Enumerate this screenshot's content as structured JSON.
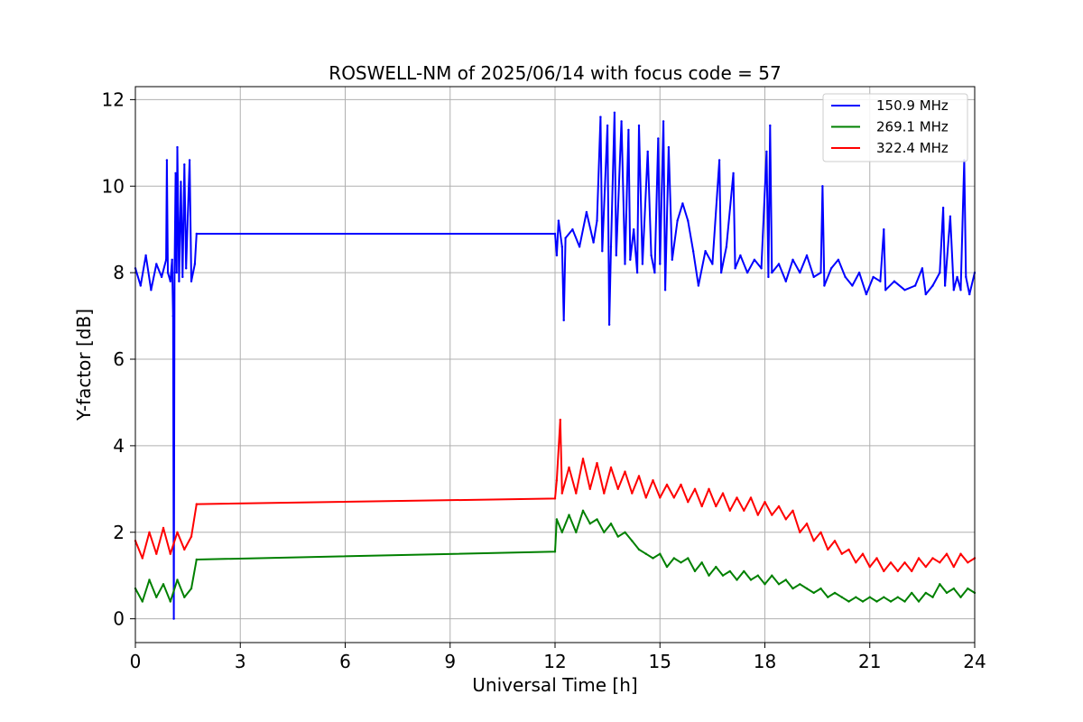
{
  "chart_data": {
    "type": "line",
    "title": "ROSWELL-NM of 2025/06/14 with focus code = 57",
    "xlabel": "Universal Time [h]",
    "ylabel": "Y-factor [dB]",
    "xlim": [
      0,
      24
    ],
    "ylim": [
      -0.55,
      12.3
    ],
    "xticks": [
      0,
      3,
      6,
      9,
      12,
      15,
      18,
      21,
      24
    ],
    "yticks": [
      0,
      2,
      4,
      6,
      8,
      10,
      12
    ],
    "grid": true,
    "legend_position": "top-right",
    "series": [
      {
        "name": "150.9 MHz",
        "color": "#0000ff",
        "points": [
          [
            0.0,
            8.1
          ],
          [
            0.15,
            7.7
          ],
          [
            0.3,
            8.4
          ],
          [
            0.45,
            7.6
          ],
          [
            0.6,
            8.2
          ],
          [
            0.75,
            7.9
          ],
          [
            0.88,
            8.3
          ],
          [
            0.9,
            10.6
          ],
          [
            0.93,
            8.0
          ],
          [
            1.0,
            7.8
          ],
          [
            1.05,
            8.3
          ],
          [
            1.08,
            7.0
          ],
          [
            1.1,
            0.0
          ],
          [
            1.12,
            8.0
          ],
          [
            1.15,
            10.3
          ],
          [
            1.18,
            8.0
          ],
          [
            1.2,
            10.9
          ],
          [
            1.25,
            7.8
          ],
          [
            1.3,
            10.1
          ],
          [
            1.35,
            7.9
          ],
          [
            1.4,
            10.5
          ],
          [
            1.45,
            8.1
          ],
          [
            1.55,
            10.6
          ],
          [
            1.6,
            7.8
          ],
          [
            1.7,
            8.2
          ],
          [
            1.75,
            8.9
          ],
          [
            12.0,
            8.9
          ],
          [
            12.05,
            8.4
          ],
          [
            12.1,
            9.2
          ],
          [
            12.2,
            8.6
          ],
          [
            12.25,
            6.9
          ],
          [
            12.3,
            8.8
          ],
          [
            12.5,
            9.0
          ],
          [
            12.7,
            8.6
          ],
          [
            12.9,
            9.4
          ],
          [
            13.1,
            8.7
          ],
          [
            13.2,
            9.2
          ],
          [
            13.3,
            11.6
          ],
          [
            13.35,
            8.5
          ],
          [
            13.5,
            11.4
          ],
          [
            13.55,
            6.8
          ],
          [
            13.6,
            8.6
          ],
          [
            13.7,
            11.7
          ],
          [
            13.75,
            8.4
          ],
          [
            13.9,
            11.5
          ],
          [
            14.0,
            8.2
          ],
          [
            14.1,
            11.3
          ],
          [
            14.15,
            8.3
          ],
          [
            14.25,
            9.0
          ],
          [
            14.35,
            8.0
          ],
          [
            14.4,
            11.4
          ],
          [
            14.5,
            8.2
          ],
          [
            14.65,
            10.8
          ],
          [
            14.75,
            8.4
          ],
          [
            14.85,
            8.0
          ],
          [
            14.95,
            11.1
          ],
          [
            15.0,
            8.2
          ],
          [
            15.1,
            11.5
          ],
          [
            15.15,
            7.6
          ],
          [
            15.25,
            10.9
          ],
          [
            15.35,
            8.3
          ],
          [
            15.5,
            9.2
          ],
          [
            15.65,
            9.6
          ],
          [
            15.8,
            9.2
          ],
          [
            15.95,
            8.5
          ],
          [
            16.1,
            7.7
          ],
          [
            16.3,
            8.5
          ],
          [
            16.5,
            8.2
          ],
          [
            16.7,
            10.6
          ],
          [
            16.75,
            8.0
          ],
          [
            16.9,
            8.6
          ],
          [
            17.1,
            10.3
          ],
          [
            17.15,
            8.1
          ],
          [
            17.3,
            8.4
          ],
          [
            17.5,
            8.0
          ],
          [
            17.7,
            8.3
          ],
          [
            17.9,
            8.1
          ],
          [
            18.05,
            10.8
          ],
          [
            18.1,
            7.9
          ],
          [
            18.15,
            11.4
          ],
          [
            18.2,
            8.0
          ],
          [
            18.4,
            8.2
          ],
          [
            18.6,
            7.8
          ],
          [
            18.8,
            8.3
          ],
          [
            19.0,
            8.0
          ],
          [
            19.2,
            8.4
          ],
          [
            19.4,
            7.9
          ],
          [
            19.6,
            8.0
          ],
          [
            19.65,
            10.0
          ],
          [
            19.7,
            7.7
          ],
          [
            19.9,
            8.1
          ],
          [
            20.1,
            8.3
          ],
          [
            20.3,
            7.9
          ],
          [
            20.5,
            7.7
          ],
          [
            20.7,
            8.0
          ],
          [
            20.9,
            7.5
          ],
          [
            21.1,
            7.9
          ],
          [
            21.3,
            7.8
          ],
          [
            21.4,
            9.0
          ],
          [
            21.45,
            7.6
          ],
          [
            21.7,
            7.8
          ],
          [
            22.0,
            7.6
          ],
          [
            22.3,
            7.7
          ],
          [
            22.5,
            8.1
          ],
          [
            22.6,
            7.5
          ],
          [
            22.8,
            7.7
          ],
          [
            23.0,
            8.0
          ],
          [
            23.1,
            9.5
          ],
          [
            23.15,
            7.7
          ],
          [
            23.3,
            9.3
          ],
          [
            23.4,
            7.6
          ],
          [
            23.5,
            7.9
          ],
          [
            23.6,
            7.6
          ],
          [
            23.7,
            10.6
          ],
          [
            23.75,
            7.9
          ],
          [
            23.85,
            7.5
          ],
          [
            24.0,
            8.0
          ]
        ]
      },
      {
        "name": "269.1 MHz",
        "color": "#008000",
        "points": [
          [
            0.0,
            0.7
          ],
          [
            0.2,
            0.4
          ],
          [
            0.4,
            0.9
          ],
          [
            0.6,
            0.5
          ],
          [
            0.8,
            0.8
          ],
          [
            1.0,
            0.4
          ],
          [
            1.2,
            0.9
          ],
          [
            1.4,
            0.5
          ],
          [
            1.6,
            0.7
          ],
          [
            1.75,
            1.37
          ],
          [
            12.0,
            1.55
          ],
          [
            12.05,
            2.3
          ],
          [
            12.2,
            2.0
          ],
          [
            12.4,
            2.4
          ],
          [
            12.6,
            2.0
          ],
          [
            12.8,
            2.5
          ],
          [
            13.0,
            2.2
          ],
          [
            13.2,
            2.3
          ],
          [
            13.4,
            2.0
          ],
          [
            13.6,
            2.2
          ],
          [
            13.8,
            1.9
          ],
          [
            14.0,
            2.0
          ],
          [
            14.2,
            1.8
          ],
          [
            14.4,
            1.6
          ],
          [
            14.6,
            1.5
          ],
          [
            14.8,
            1.4
          ],
          [
            15.0,
            1.5
          ],
          [
            15.2,
            1.2
          ],
          [
            15.4,
            1.4
          ],
          [
            15.6,
            1.3
          ],
          [
            15.8,
            1.4
          ],
          [
            16.0,
            1.1
          ],
          [
            16.2,
            1.3
          ],
          [
            16.4,
            1.0
          ],
          [
            16.6,
            1.2
          ],
          [
            16.8,
            1.0
          ],
          [
            17.0,
            1.1
          ],
          [
            17.2,
            0.9
          ],
          [
            17.4,
            1.1
          ],
          [
            17.6,
            0.9
          ],
          [
            17.8,
            1.0
          ],
          [
            18.0,
            0.8
          ],
          [
            18.2,
            1.0
          ],
          [
            18.4,
            0.8
          ],
          [
            18.6,
            0.9
          ],
          [
            18.8,
            0.7
          ],
          [
            19.0,
            0.8
          ],
          [
            19.2,
            0.7
          ],
          [
            19.4,
            0.6
          ],
          [
            19.6,
            0.7
          ],
          [
            19.8,
            0.5
          ],
          [
            20.0,
            0.6
          ],
          [
            20.2,
            0.5
          ],
          [
            20.4,
            0.4
          ],
          [
            20.6,
            0.5
          ],
          [
            20.8,
            0.4
          ],
          [
            21.0,
            0.5
          ],
          [
            21.2,
            0.4
          ],
          [
            21.4,
            0.5
          ],
          [
            21.6,
            0.4
          ],
          [
            21.8,
            0.5
          ],
          [
            22.0,
            0.4
          ],
          [
            22.2,
            0.6
          ],
          [
            22.4,
            0.4
          ],
          [
            22.6,
            0.6
          ],
          [
            22.8,
            0.5
          ],
          [
            23.0,
            0.8
          ],
          [
            23.2,
            0.6
          ],
          [
            23.4,
            0.7
          ],
          [
            23.6,
            0.5
          ],
          [
            23.8,
            0.7
          ],
          [
            24.0,
            0.6
          ]
        ]
      },
      {
        "name": "322.4 MHz",
        "color": "#ff0000",
        "points": [
          [
            0.0,
            1.8
          ],
          [
            0.2,
            1.4
          ],
          [
            0.4,
            2.0
          ],
          [
            0.6,
            1.5
          ],
          [
            0.8,
            2.1
          ],
          [
            1.0,
            1.5
          ],
          [
            1.2,
            2.0
          ],
          [
            1.4,
            1.6
          ],
          [
            1.6,
            1.9
          ],
          [
            1.75,
            2.65
          ],
          [
            12.0,
            2.78
          ],
          [
            12.05,
            3.2
          ],
          [
            12.15,
            4.6
          ],
          [
            12.2,
            2.9
          ],
          [
            12.4,
            3.5
          ],
          [
            12.6,
            2.9
          ],
          [
            12.8,
            3.7
          ],
          [
            13.0,
            3.0
          ],
          [
            13.2,
            3.6
          ],
          [
            13.4,
            2.9
          ],
          [
            13.6,
            3.5
          ],
          [
            13.8,
            3.0
          ],
          [
            14.0,
            3.4
          ],
          [
            14.2,
            2.9
          ],
          [
            14.4,
            3.3
          ],
          [
            14.6,
            2.8
          ],
          [
            14.8,
            3.2
          ],
          [
            15.0,
            2.8
          ],
          [
            15.2,
            3.1
          ],
          [
            15.4,
            2.8
          ],
          [
            15.6,
            3.1
          ],
          [
            15.8,
            2.7
          ],
          [
            16.0,
            3.0
          ],
          [
            16.2,
            2.6
          ],
          [
            16.4,
            3.0
          ],
          [
            16.6,
            2.6
          ],
          [
            16.8,
            2.9
          ],
          [
            17.0,
            2.5
          ],
          [
            17.2,
            2.8
          ],
          [
            17.4,
            2.5
          ],
          [
            17.6,
            2.8
          ],
          [
            17.8,
            2.4
          ],
          [
            18.0,
            2.7
          ],
          [
            18.2,
            2.4
          ],
          [
            18.4,
            2.6
          ],
          [
            18.6,
            2.3
          ],
          [
            18.8,
            2.5
          ],
          [
            19.0,
            2.0
          ],
          [
            19.2,
            2.2
          ],
          [
            19.4,
            1.8
          ],
          [
            19.6,
            2.0
          ],
          [
            19.8,
            1.6
          ],
          [
            20.0,
            1.8
          ],
          [
            20.2,
            1.5
          ],
          [
            20.4,
            1.6
          ],
          [
            20.6,
            1.3
          ],
          [
            20.8,
            1.5
          ],
          [
            21.0,
            1.2
          ],
          [
            21.2,
            1.4
          ],
          [
            21.4,
            1.1
          ],
          [
            21.6,
            1.3
          ],
          [
            21.8,
            1.1
          ],
          [
            22.0,
            1.3
          ],
          [
            22.2,
            1.1
          ],
          [
            22.4,
            1.4
          ],
          [
            22.6,
            1.2
          ],
          [
            22.8,
            1.4
          ],
          [
            23.0,
            1.3
          ],
          [
            23.2,
            1.5
          ],
          [
            23.4,
            1.2
          ],
          [
            23.6,
            1.5
          ],
          [
            23.8,
            1.3
          ],
          [
            24.0,
            1.4
          ]
        ]
      }
    ]
  }
}
